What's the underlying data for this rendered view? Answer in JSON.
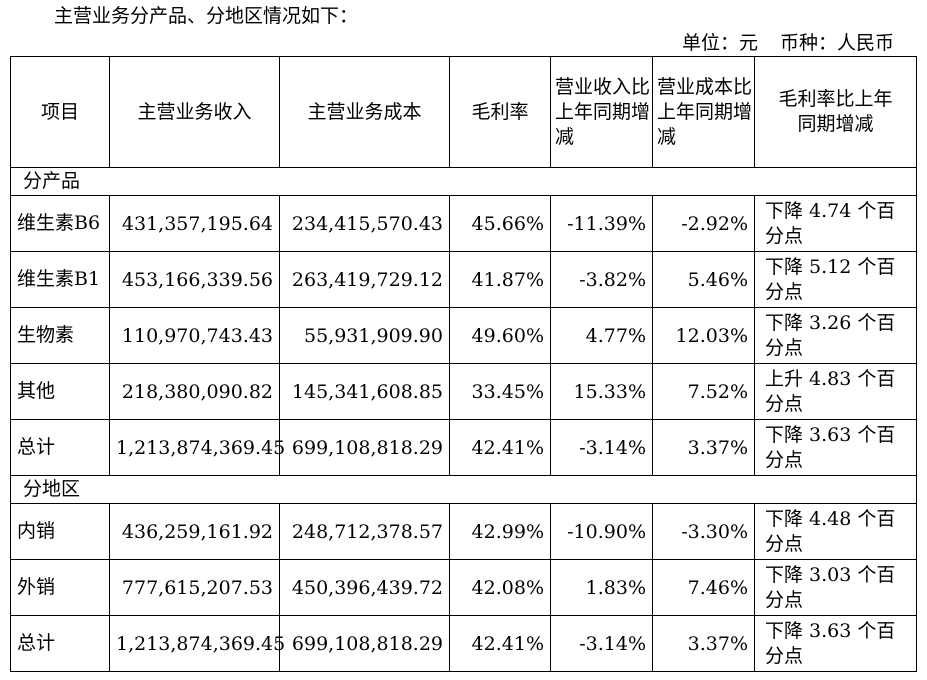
{
  "intro": "主营业务分产品、分地区情况如下：",
  "unit": {
    "unit_label": "单位：元",
    "currency_label": "币种：人民币"
  },
  "headers": [
    "项目",
    "主营业务收入",
    "主营业务成本",
    "毛利率",
    "营业收入比上年同期增减",
    "营业成本比上年同期增减",
    "毛利率比上年同期增减"
  ],
  "sections": [
    {
      "title": "分产品",
      "rows": [
        {
          "item": "维生素B6",
          "revenue": "431,357,195.64",
          "cost": "234,415,570.43",
          "margin": "45.66%",
          "rev_change": "-11.39%",
          "cost_change": "-2.92%",
          "margin_change": "下降 4.74 个百分点"
        },
        {
          "item": "维生素B1",
          "revenue": "453,166,339.56",
          "cost": "263,419,729.12",
          "margin": "41.87%",
          "rev_change": "-3.82%",
          "cost_change": "5.46%",
          "margin_change": "下降 5.12 个百分点"
        },
        {
          "item": "生物素",
          "revenue": "110,970,743.43",
          "cost": "55,931,909.90",
          "margin": "49.60%",
          "rev_change": "4.77%",
          "cost_change": "12.03%",
          "margin_change": "下降 3.26 个百分点"
        },
        {
          "item": "其他",
          "revenue": "218,380,090.82",
          "cost": "145,341,608.85",
          "margin": "33.45%",
          "rev_change": "15.33%",
          "cost_change": "7.52%",
          "margin_change": "上升 4.83 个百分点"
        },
        {
          "item": "总计",
          "revenue": "1,213,874,369.45",
          "cost": "699,108,818.29",
          "margin": "42.41%",
          "rev_change": "-3.14%",
          "cost_change": "3.37%",
          "margin_change": "下降 3.63 个百分点"
        }
      ]
    },
    {
      "title": "分地区",
      "rows": [
        {
          "item": "内销",
          "revenue": "436,259,161.92",
          "cost": "248,712,378.57",
          "margin": "42.99%",
          "rev_change": "-10.90%",
          "cost_change": "-3.30%",
          "margin_change": "下降 4.48 个百分点"
        },
        {
          "item": "外销",
          "revenue": "777,615,207.53",
          "cost": "450,396,439.72",
          "margin": "42.08%",
          "rev_change": "1.83%",
          "cost_change": "7.46%",
          "margin_change": "下降 3.03 个百分点"
        },
        {
          "item": "总计",
          "revenue": "1,213,874,369.45",
          "cost": "699,108,818.29",
          "margin": "42.41%",
          "rev_change": "-3.14%",
          "cost_change": "3.37%",
          "margin_change": "下降 3.63 个百分点"
        }
      ]
    }
  ]
}
